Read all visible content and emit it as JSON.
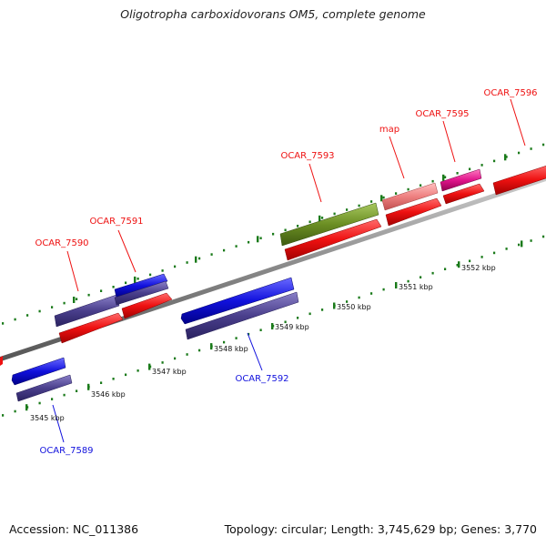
{
  "title": "Oligotropha carboxidovorans OM5, complete genome",
  "footer": {
    "accession": "Accession: NC_011386",
    "summary": "Topology: circular; Length: 3,745,629 bp; Genes: 3,770"
  },
  "colors": {
    "red": "#ee1111",
    "blue": "#1111dd",
    "slate": "#4a3f8c",
    "olive": "#6b8e23",
    "salmon": "#ee8080",
    "magenta": "#e0148c",
    "tick": "#1a7a1a",
    "axis": "#888888"
  },
  "kbp_labels": [
    "3545 kbp",
    "3546 kbp",
    "3547 kbp",
    "3548 kbp",
    "3549 kbp",
    "3550 kbp",
    "3551 kbp",
    "3552 kbp"
  ],
  "gene_labels": {
    "ocar_7589": "OCAR_7589",
    "ocar_7590": "OCAR_7590",
    "ocar_7591": "OCAR_7591",
    "ocar_7592": "OCAR_7592",
    "ocar_7593": "OCAR_7593",
    "map": "map",
    "ocar_7595": "OCAR_7595",
    "ocar_7596": "OCAR_7596"
  }
}
